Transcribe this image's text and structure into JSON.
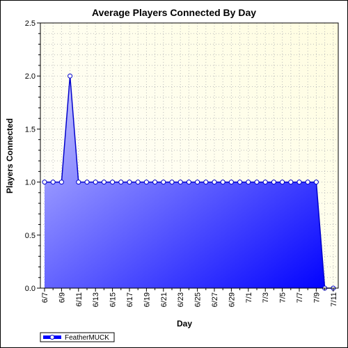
{
  "chart_data": {
    "type": "area",
    "title": "Average Players Connected By Day",
    "xlabel": "Day",
    "ylabel": "Players Connected",
    "ylim": [
      0,
      2.5
    ],
    "yticks": [
      "0.0",
      "0.5",
      "1.0",
      "1.5",
      "2.0",
      "2.5"
    ],
    "categories": [
      "6/7",
      "6/8",
      "6/9",
      "6/10",
      "6/11",
      "6/12",
      "6/13",
      "6/14",
      "6/15",
      "6/16",
      "6/17",
      "6/18",
      "6/19",
      "6/20",
      "6/21",
      "6/22",
      "6/23",
      "6/24",
      "6/25",
      "6/26",
      "6/27",
      "6/28",
      "6/29",
      "6/30",
      "7/1",
      "7/2",
      "7/3",
      "7/4",
      "7/5",
      "7/6",
      "7/7",
      "7/8",
      "7/9",
      "7/10",
      "7/11"
    ],
    "xtick_labels": [
      "6/7",
      "6/9",
      "6/11",
      "6/13",
      "6/15",
      "6/17",
      "6/19",
      "6/21",
      "6/23",
      "6/25",
      "6/27",
      "6/29",
      "7/1",
      "7/3",
      "7/5",
      "7/7",
      "7/9",
      "7/11"
    ],
    "series": [
      {
        "name": "FeatherMUCK",
        "values": [
          1,
          1,
          1,
          2,
          1,
          1,
          1,
          1,
          1,
          1,
          1,
          1,
          1,
          1,
          1,
          1,
          1,
          1,
          1,
          1,
          1,
          1,
          1,
          1,
          1,
          1,
          1,
          1,
          1,
          1,
          1,
          1,
          1,
          0,
          0
        ]
      }
    ],
    "grid": true,
    "legend": "bottom-left",
    "colors": {
      "plot_bg_top": "#fffde0",
      "plot_bg_bottom": "#ffffff",
      "fill_light": "#c8c8ff",
      "fill_dark": "#0000ff",
      "line": "#0000cc",
      "marker_fill": "#ffffff",
      "grid": "#bbbbbb"
    }
  }
}
